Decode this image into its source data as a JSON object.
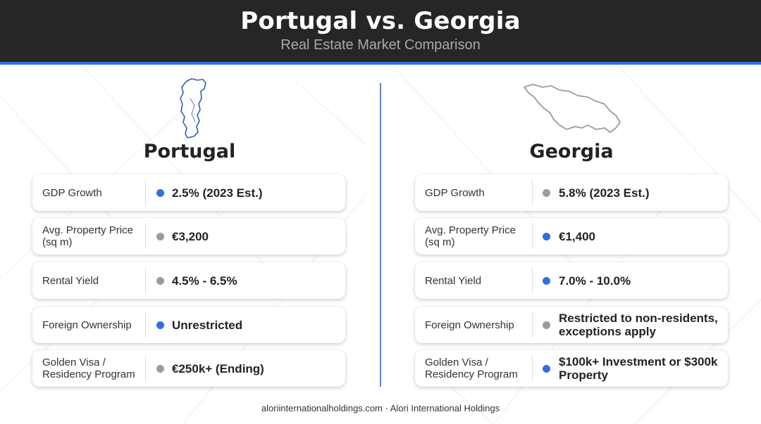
{
  "header": {
    "title": "Portugal vs. Georgia",
    "subtitle": "Real Estate Market Comparison"
  },
  "colors": {
    "header_bg": "#262626",
    "accent": "#2f6fe4",
    "dot_blue": "#2f6fe4",
    "dot_gray": "#9c9c9c"
  },
  "left": {
    "name": "Portugal",
    "map_icon": "portugal-map-icon",
    "rows": [
      {
        "label": "GDP Growth",
        "value": "2.5% (2023 Est.)",
        "dot": "blue"
      },
      {
        "label": "Avg. Property Price (sq m)",
        "value": "€3,200",
        "dot": "gray"
      },
      {
        "label": "Rental Yield",
        "value": "4.5% - 6.5%",
        "dot": "gray"
      },
      {
        "label": "Foreign Ownership",
        "value": "Unrestricted",
        "dot": "blue"
      },
      {
        "label": "Golden Visa / Residency Program",
        "value": "€250k+ (Ending)",
        "dot": "gray"
      }
    ]
  },
  "right": {
    "name": "Georgia",
    "map_icon": "georgia-map-icon",
    "rows": [
      {
        "label": "GDP Growth",
        "value": "5.8% (2023 Est.)",
        "dot": "gray"
      },
      {
        "label": "Avg. Property Price (sq m)",
        "value": "€1,400",
        "dot": "blue"
      },
      {
        "label": "Rental Yield",
        "value": "7.0% - 10.0%",
        "dot": "blue"
      },
      {
        "label": "Foreign Ownership",
        "value": "Restricted to non-residents, exceptions apply",
        "dot": "gray"
      },
      {
        "label": "Golden Visa / Residency Program",
        "value": "$100k+ Investment or $300k Property",
        "dot": "blue"
      }
    ]
  },
  "footer": {
    "text": "aloriinternationalholdings.com · Alori International Holdings"
  }
}
